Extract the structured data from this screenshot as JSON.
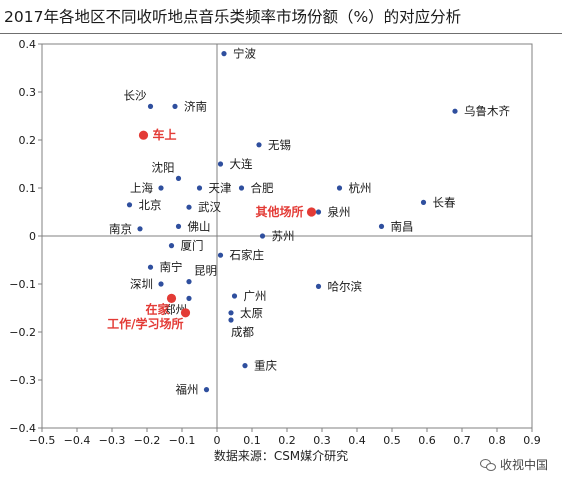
{
  "title": "2017年各地区不同收听地点音乐类频率市场份额（%）的对应分析",
  "source": "数据来源：CSM媒介研究",
  "watermark": "收视中国",
  "colors": {
    "city": "#2f4f9e",
    "location": "#e33b36",
    "axis": "#808080",
    "text": "#1a1a1a"
  },
  "chart_data": {
    "type": "scatter",
    "title": "2017年各地区不同收听地点音乐类频率市场份额（%）的对应分析",
    "xlim": [
      -0.5,
      0.9
    ],
    "ylim": [
      -0.4,
      0.4
    ],
    "xticks": [
      -0.5,
      -0.4,
      -0.3,
      -0.2,
      -0.1,
      0,
      0.1,
      0.2,
      0.3,
      0.4,
      0.5,
      0.6,
      0.7,
      0.8,
      0.9
    ],
    "xtick_labels": [
      "−0.5",
      "−0.4",
      "−0.3",
      "−0.2",
      "−0.1",
      "0",
      "0.1",
      "0.2",
      "0.3",
      "0.4",
      "0.5",
      "0.6",
      "0.7",
      "0.8",
      "0.9"
    ],
    "yticks": [
      -0.4,
      -0.3,
      -0.2,
      -0.1,
      0,
      0.1,
      0.2,
      0.3,
      0.4
    ],
    "ytick_labels": [
      "−0.4",
      "−0.3",
      "−0.2",
      "−0.1",
      "0",
      "0.1",
      "0.2",
      "0.3",
      "0.4"
    ],
    "grid": false,
    "series": [
      {
        "kind": "city",
        "points": [
          {
            "label": "宁波",
            "x": 0.02,
            "y": 0.38,
            "anchor": "right"
          },
          {
            "label": "长沙",
            "x": -0.19,
            "y": 0.27,
            "anchor": "upper-left"
          },
          {
            "label": "济南",
            "x": -0.12,
            "y": 0.27,
            "anchor": "right"
          },
          {
            "label": "乌鲁木齐",
            "x": 0.68,
            "y": 0.26,
            "anchor": "right"
          },
          {
            "label": "无锡",
            "x": 0.12,
            "y": 0.19,
            "anchor": "right"
          },
          {
            "label": "大连",
            "x": 0.01,
            "y": 0.15,
            "anchor": "right"
          },
          {
            "label": "沈阳",
            "x": -0.11,
            "y": 0.12,
            "anchor": "upper-left"
          },
          {
            "label": "上海",
            "x": -0.16,
            "y": 0.1,
            "anchor": "left"
          },
          {
            "label": "天津",
            "x": -0.05,
            "y": 0.1,
            "anchor": "right"
          },
          {
            "label": "合肥",
            "x": 0.07,
            "y": 0.1,
            "anchor": "right"
          },
          {
            "label": "杭州",
            "x": 0.35,
            "y": 0.1,
            "anchor": "right"
          },
          {
            "label": "北京",
            "x": -0.25,
            "y": 0.065,
            "anchor": "right"
          },
          {
            "label": "武汉",
            "x": -0.08,
            "y": 0.06,
            "anchor": "right"
          },
          {
            "label": "长春",
            "x": 0.59,
            "y": 0.07,
            "anchor": "right"
          },
          {
            "label": "泉州",
            "x": 0.29,
            "y": 0.05,
            "anchor": "right"
          },
          {
            "label": "南京",
            "x": -0.22,
            "y": 0.015,
            "anchor": "left"
          },
          {
            "label": "佛山",
            "x": -0.11,
            "y": 0.02,
            "anchor": "right"
          },
          {
            "label": "南昌",
            "x": 0.47,
            "y": 0.02,
            "anchor": "right"
          },
          {
            "label": "苏州",
            "x": 0.13,
            "y": 0.0,
            "anchor": "right"
          },
          {
            "label": "厦门",
            "x": -0.13,
            "y": -0.02,
            "anchor": "right"
          },
          {
            "label": "石家庄",
            "x": 0.01,
            "y": -0.04,
            "anchor": "right"
          },
          {
            "label": "南宁",
            "x": -0.19,
            "y": -0.065,
            "anchor": "right"
          },
          {
            "label": "深圳",
            "x": -0.16,
            "y": -0.1,
            "anchor": "left"
          },
          {
            "label": "昆明",
            "x": -0.08,
            "y": -0.095,
            "anchor": "upper-right"
          },
          {
            "label": "哈尔滨",
            "x": 0.29,
            "y": -0.105,
            "anchor": "right"
          },
          {
            "label": "广州",
            "x": 0.05,
            "y": -0.125,
            "anchor": "right"
          },
          {
            "label": "郑州",
            "x": -0.08,
            "y": -0.13,
            "anchor": "below-left"
          },
          {
            "label": "太原",
            "x": 0.04,
            "y": -0.16,
            "anchor": "right"
          },
          {
            "label": "成都",
            "x": 0.04,
            "y": -0.175,
            "anchor": "below-right"
          },
          {
            "label": "重庆",
            "x": 0.08,
            "y": -0.27,
            "anchor": "right"
          },
          {
            "label": "福州",
            "x": -0.03,
            "y": -0.32,
            "anchor": "left"
          }
        ]
      },
      {
        "kind": "location",
        "points": [
          {
            "label": "车上",
            "x": -0.21,
            "y": 0.21,
            "anchor": "right"
          },
          {
            "label": "其他场所",
            "x": 0.27,
            "y": 0.05,
            "anchor": "left"
          },
          {
            "label": "在家",
            "x": -0.13,
            "y": -0.13,
            "anchor": "below-left"
          },
          {
            "label": "工作/学习场所",
            "x": -0.09,
            "y": -0.16,
            "anchor": "below-left"
          }
        ]
      }
    ]
  }
}
